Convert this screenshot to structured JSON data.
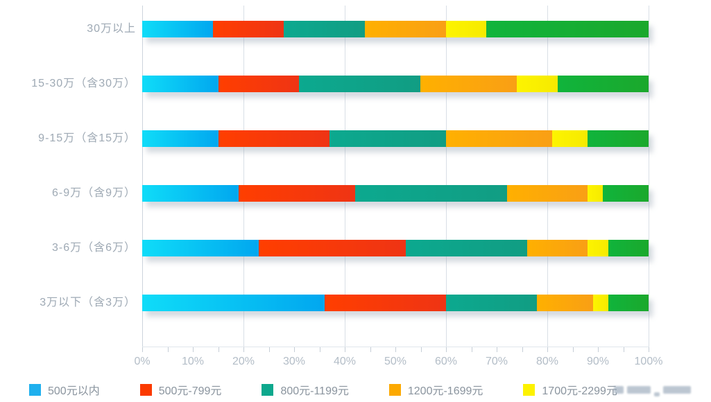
{
  "chart_data": {
    "type": "bar",
    "stacked": true,
    "orientation": "horizontal",
    "title": "",
    "categories": [
      "30万以上",
      "15-30万（含30万）",
      "9-15万（含15万）",
      "6-9万（含9万）",
      "3-6万（含6万）",
      "3万以下（含3万）"
    ],
    "series": [
      {
        "name": "500元以内",
        "values": [
          14,
          15,
          15,
          19,
          23,
          36
        ],
        "gradient": [
          "#0fdcf8",
          "#01a7ef"
        ],
        "legend_color": "#1fb0ee"
      },
      {
        "name": "500元-799元",
        "values": [
          14,
          16,
          22,
          23,
          29,
          24
        ],
        "gradient": [
          "#ff3e00",
          "#ef3414"
        ],
        "legend_color": "#fb3a00"
      },
      {
        "name": "800元-1199元",
        "values": [
          16,
          24,
          23,
          30,
          24,
          18
        ],
        "gradient": [
          "#0ca98f",
          "#119d83"
        ],
        "legend_color": "#0da88d"
      },
      {
        "name": "1200元-1699元",
        "values": [
          16,
          19,
          21,
          16,
          12,
          11
        ],
        "gradient": [
          "#ffb000",
          "#f99f15"
        ],
        "legend_color": "#fca900"
      },
      {
        "name": "1700元-2299元",
        "values": [
          8,
          8,
          7,
          3,
          4,
          3
        ],
        "gradient": [
          "#fdf400",
          "#f6ea00"
        ],
        "legend_color": "#fdf200"
      },
      {
        "name": "",
        "values": [
          32,
          18,
          12,
          9,
          8,
          8
        ],
        "gradient": [
          "#10b43c",
          "#1ba82c"
        ],
        "legend_color": ""
      }
    ],
    "x_ticks": [
      "0%",
      "10%",
      "20%",
      "30%",
      "40%",
      "50%",
      "60%",
      "70%",
      "80%",
      "90%",
      "100%"
    ],
    "xlim": [
      0,
      100
    ],
    "grid": "vertical gridlines every 20%, minor ticks every 5%",
    "legend_position": "bottom",
    "note_unlabeled_series": "sixth (green) segment has no visible legend entry"
  },
  "icons": {
    "watermark": "blurred-logo"
  }
}
